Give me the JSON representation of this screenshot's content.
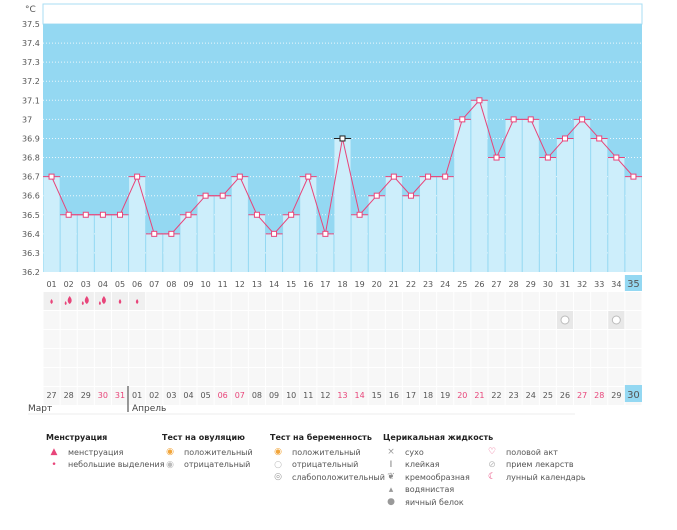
{
  "chart_data": {
    "type": "bar",
    "title": "",
    "ylabel": "°C",
    "ylim": [
      36.2,
      37.5
    ],
    "yticks": [
      "37.5",
      "37.4",
      "37.3",
      "37.2",
      "37.1",
      "37",
      "36.9",
      "36.8",
      "36.7",
      "36.6",
      "36.5",
      "36.4",
      "36.3",
      "36.2"
    ],
    "categories": [
      "01",
      "02",
      "03",
      "04",
      "05",
      "06",
      "07",
      "08",
      "09",
      "10",
      "11",
      "12",
      "13",
      "14",
      "15",
      "16",
      "17",
      "18",
      "19",
      "20",
      "21",
      "22",
      "23",
      "24",
      "25",
      "26",
      "27",
      "28",
      "29",
      "30",
      "31",
      "32",
      "33",
      "34",
      "35"
    ],
    "values": [
      36.7,
      36.5,
      36.5,
      36.5,
      36.5,
      36.7,
      36.4,
      36.4,
      36.5,
      36.6,
      36.6,
      36.7,
      36.5,
      36.4,
      36.5,
      36.7,
      36.4,
      36.9,
      36.5,
      36.6,
      36.7,
      36.6,
      36.7,
      36.7,
      37.0,
      37.1,
      36.8,
      37.0,
      37.0,
      36.8,
      36.9,
      37.0,
      36.9,
      36.8,
      36.7
    ],
    "highlighted_point": "18",
    "current_day": "35",
    "dates": [
      "27",
      "28",
      "29",
      "30",
      "31",
      "01",
      "02",
      "03",
      "04",
      "05",
      "06",
      "07",
      "08",
      "09",
      "10",
      "11",
      "12",
      "13",
      "14",
      "15",
      "16",
      "17",
      "18",
      "19",
      "20",
      "21",
      "22",
      "23",
      "24",
      "25",
      "26",
      "27",
      "28",
      "29",
      "30"
    ],
    "weekend_dates_idx": [
      3,
      4,
      10,
      11,
      17,
      18,
      24,
      25,
      31,
      32
    ],
    "menstruation": [
      "light",
      "heavy",
      "heavy",
      "heavy",
      "light",
      "light"
    ],
    "pregnancy_test_negative_days": [
      31,
      34
    ],
    "months": [
      "Март",
      "Апрель"
    ],
    "colors": {
      "bg": "#94d8f2",
      "bar": "#cdeefb",
      "line": "#e8457a",
      "accent": "#94d8f2"
    }
  },
  "legend": [
    {
      "title": "Менструация",
      "items": [
        {
          "icon": "drop-heavy-icon",
          "label": "менструация"
        },
        {
          "icon": "drop-light-icon",
          "label": "небольшие выделения"
        }
      ]
    },
    {
      "title": "Тест на овуляцию",
      "items": [
        {
          "icon": "ovulation-positive-icon",
          "label": "положительный"
        },
        {
          "icon": "ovulation-negative-icon",
          "label": "отрицательный"
        }
      ]
    },
    {
      "title": "Тест на беременность",
      "items": [
        {
          "icon": "pregnancy-positive-icon",
          "label": "положительный"
        },
        {
          "icon": "pregnancy-negative-icon",
          "label": "отрицательный"
        },
        {
          "icon": "pregnancy-weak-icon",
          "label": "слабоположительный"
        }
      ]
    },
    {
      "title": "Церикальная жидкость",
      "items": [
        {
          "icon": "dry-icon",
          "label": "сухо"
        },
        {
          "icon": "sticky-icon",
          "label": "клейкая"
        },
        {
          "icon": "creamy-icon",
          "label": "кремообразная"
        },
        {
          "icon": "watery-icon",
          "label": "водянистая"
        },
        {
          "icon": "egg-white-icon",
          "label": "яичный белок"
        }
      ]
    },
    {
      "title": "",
      "items": [
        {
          "icon": "heart-icon",
          "label": "половой акт"
        },
        {
          "icon": "pill-icon",
          "label": "прием лекарств"
        },
        {
          "icon": "moon-icon",
          "label": "лунный календарь"
        }
      ]
    }
  ]
}
